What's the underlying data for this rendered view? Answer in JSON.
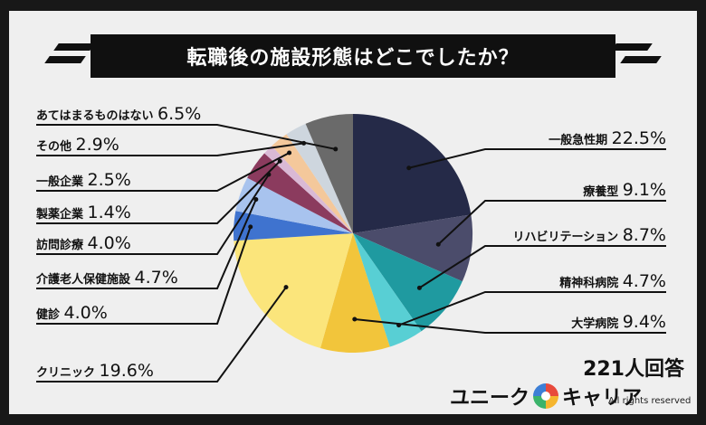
{
  "title": "転職後の施設形態はどこでしたか？",
  "respondents": "221人回答",
  "logo": {
    "left": "ユニーク",
    "right": "キャリア",
    "rights": "All rights reserved"
  },
  "chart_data": {
    "type": "pie",
    "slices": [
      {
        "label": "一般急性期",
        "value": 22.5,
        "display": "22.5%",
        "color": "#252a48"
      },
      {
        "label": "療養型",
        "value": 9.1,
        "display": "9.1%",
        "color": "#4b4c6b"
      },
      {
        "label": "リハビリテーション",
        "value": 8.7,
        "display": "8.7%",
        "color": "#1f9aa0"
      },
      {
        "label": "精神科病院",
        "value": 4.7,
        "display": "4.7%",
        "color": "#58cfd4"
      },
      {
        "label": "大学病院",
        "value": 9.4,
        "display": "9.4%",
        "color": "#f2c53b"
      },
      {
        "label": "クリニック",
        "value": 19.6,
        "display": "19.6%",
        "color": "#fbe57b"
      },
      {
        "label": "健診",
        "value": 4.0,
        "display": "4.0%",
        "color": "#3f73cf"
      },
      {
        "label": "介護老人保健施設",
        "value": 4.7,
        "display": "4.7%",
        "color": "#a8c3ee"
      },
      {
        "label": "訪問診療",
        "value": 4.0,
        "display": "4.0%",
        "color": "#8b3b5e"
      },
      {
        "label": "製薬企業",
        "value": 1.4,
        "display": "1.4%",
        "color": "#dab9d5"
      },
      {
        "label": "一般企業",
        "value": 2.5,
        "display": "2.5%",
        "color": "#f4c89b"
      },
      {
        "label": "その他",
        "value": 2.9,
        "display": "2.9%",
        "color": "#ced6de"
      },
      {
        "label": "あてはまるものはない",
        "value": 6.5,
        "display": "6.5%",
        "color": "#6a6a6a"
      }
    ]
  }
}
